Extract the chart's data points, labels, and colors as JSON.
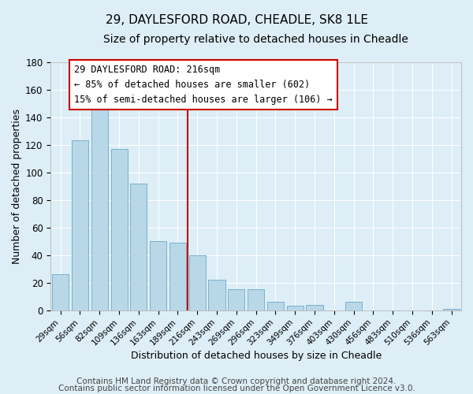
{
  "title": "29, DAYLESFORD ROAD, CHEADLE, SK8 1LE",
  "subtitle": "Size of property relative to detached houses in Cheadle",
  "xlabel": "Distribution of detached houses by size in Cheadle",
  "ylabel": "Number of detached properties",
  "bar_labels": [
    "29sqm",
    "56sqm",
    "82sqm",
    "109sqm",
    "136sqm",
    "163sqm",
    "189sqm",
    "216sqm",
    "243sqm",
    "269sqm",
    "296sqm",
    "323sqm",
    "349sqm",
    "376sqm",
    "403sqm",
    "430sqm",
    "456sqm",
    "483sqm",
    "510sqm",
    "536sqm",
    "563sqm"
  ],
  "bar_values": [
    26,
    123,
    150,
    117,
    92,
    50,
    49,
    40,
    22,
    15,
    15,
    6,
    3,
    4,
    0,
    6,
    0,
    0,
    0,
    0,
    1
  ],
  "bar_color": "#b8d8e8",
  "bar_edge_color": "#7ab0cc",
  "vline_color": "#cc0000",
  "ylim": [
    0,
    180
  ],
  "yticks": [
    0,
    20,
    40,
    60,
    80,
    100,
    120,
    140,
    160,
    180
  ],
  "annotation_title": "29 DAYLESFORD ROAD: 216sqm",
  "annotation_line1": "← 85% of detached houses are smaller (602)",
  "annotation_line2": "15% of semi-detached houses are larger (106) →",
  "annotation_box_color": "#ffffff",
  "annotation_box_edge": "#cc0000",
  "footer1": "Contains HM Land Registry data © Crown copyright and database right 2024.",
  "footer2": "Contains public sector information licensed under the Open Government Licence v3.0.",
  "background_color": "#ddeef6",
  "plot_background_color": "#ddeef6",
  "title_fontsize": 11,
  "subtitle_fontsize": 10,
  "footer_fontsize": 7.5,
  "grid_color": "#ffffff"
}
